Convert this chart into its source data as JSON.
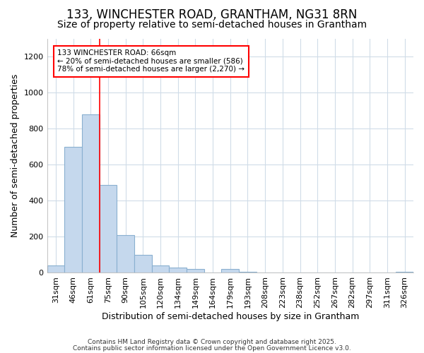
{
  "title1": "133, WINCHESTER ROAD, GRANTHAM, NG31 8RN",
  "title2": "Size of property relative to semi-detached houses in Grantham",
  "xlabel": "Distribution of semi-detached houses by size in Grantham",
  "ylabel": "Number of semi-detached properties",
  "categories": [
    "31sqm",
    "46sqm",
    "61sqm",
    "75sqm",
    "90sqm",
    "105sqm",
    "120sqm",
    "134sqm",
    "149sqm",
    "164sqm",
    "179sqm",
    "193sqm",
    "208sqm",
    "223sqm",
    "238sqm",
    "252sqm",
    "267sqm",
    "282sqm",
    "297sqm",
    "311sqm",
    "326sqm"
  ],
  "values": [
    40,
    700,
    880,
    490,
    210,
    100,
    40,
    30,
    20,
    0,
    20,
    5,
    0,
    0,
    0,
    0,
    0,
    0,
    0,
    0,
    5
  ],
  "bar_color": "#c5d8ed",
  "bar_edgecolor": "#8ab0d0",
  "vline_x": 2.5,
  "vline_color": "red",
  "annotation_text": "133 WINCHESTER ROAD: 66sqm\n← 20% of semi-detached houses are smaller (586)\n78% of semi-detached houses are larger (2,270) →",
  "annotation_box_color": "white",
  "annotation_box_edgecolor": "red",
  "ylim": [
    0,
    1300
  ],
  "yticks": [
    0,
    200,
    400,
    600,
    800,
    1000,
    1200
  ],
  "footer1": "Contains HM Land Registry data © Crown copyright and database right 2025.",
  "footer2": "Contains public sector information licensed under the Open Government Licence v3.0.",
  "background_color": "#ffffff",
  "grid_color": "#d0dce8",
  "title1_fontsize": 12,
  "title2_fontsize": 10,
  "xlabel_fontsize": 9,
  "ylabel_fontsize": 9,
  "tick_fontsize": 8,
  "annotation_fontsize": 7.5,
  "footer_fontsize": 6.5
}
